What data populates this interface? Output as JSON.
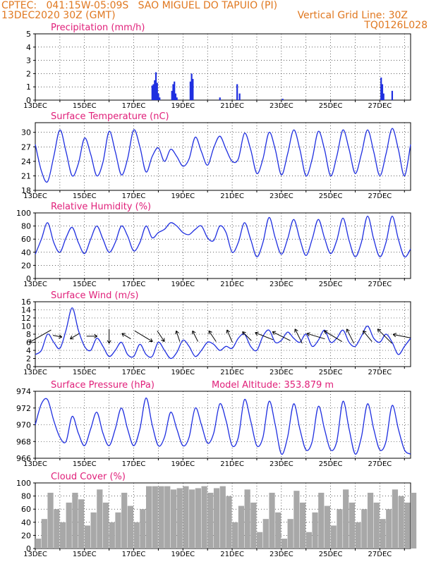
{
  "header": {
    "line1": "CPTEC:   041:15W-05:09S   SAO MIGUEL DO TAPUIO (PI)",
    "line2_left": "13DEC2020 30Z (GMT)",
    "line2_right": "Vertical Grid Line: 30Z",
    "line3_right": "TQ0126L028"
  },
  "colors": {
    "header": "#e07820",
    "title": "#e0207a",
    "series": "#1f2fe0",
    "cloud": "#a8a8a8"
  },
  "chart_data": [
    {
      "type": "bar",
      "title": "Precipitation (mm/h)",
      "ylim": [
        0,
        5
      ],
      "yticks": [
        0,
        1,
        2,
        3,
        4,
        5
      ],
      "xticks": [
        "13DEC",
        "15DEC",
        "17DEC",
        "19DEC",
        "21DEC",
        "23DEC",
        "25DEC",
        "27DEC"
      ],
      "xlim": [
        0,
        15.25
      ],
      "x": [
        4.75,
        4.8,
        4.85,
        4.9,
        4.95,
        5.0,
        5.05,
        5.55,
        5.6,
        5.65,
        5.7,
        5.75,
        6.3,
        6.35,
        6.4,
        7.5,
        8.2,
        8.3,
        10.05,
        14.05,
        14.1,
        14.15,
        14.5
      ],
      "values": [
        1.1,
        1.2,
        1.5,
        2.1,
        1.3,
        0.5,
        0.2,
        0.7,
        1.2,
        1.4,
        0.5,
        0.2,
        1.4,
        2.0,
        1.6,
        0.2,
        1.2,
        0.5,
        0.1,
        1.7,
        1.2,
        0.5,
        0.7
      ]
    },
    {
      "type": "line",
      "title": "Surface Temperature (nC)",
      "ylim": [
        18,
        32
      ],
      "yticks": [
        18,
        21,
        24,
        27,
        30
      ],
      "xticks": [
        "13DEC",
        "15DEC",
        "17DEC",
        "19DEC",
        "21DEC",
        "23DEC",
        "25DEC",
        "27DEC"
      ],
      "xlim": [
        0,
        15.25
      ],
      "x": [
        0.0,
        0.25,
        0.5,
        0.75,
        1.0,
        1.25,
        1.5,
        1.75,
        2.0,
        2.25,
        2.5,
        2.75,
        3.0,
        3.25,
        3.5,
        3.75,
        4.0,
        4.25,
        4.5,
        4.75,
        5.0,
        5.25,
        5.5,
        5.75,
        6.0,
        6.25,
        6.5,
        6.75,
        7.0,
        7.25,
        7.5,
        7.75,
        8.0,
        8.25,
        8.5,
        8.75,
        9.0,
        9.25,
        9.5,
        9.75,
        10.0,
        10.25,
        10.5,
        10.75,
        11.0,
        11.25,
        11.5,
        11.75,
        12.0,
        12.25,
        12.5,
        12.75,
        13.0,
        13.25,
        13.5,
        13.75,
        14.0,
        14.25,
        14.5,
        14.75,
        15.0,
        15.25
      ],
      "values": [
        27.5,
        22.0,
        19.8,
        25.0,
        30.5,
        26.0,
        21.0,
        23.5,
        28.8,
        25.5,
        21.0,
        23.8,
        30.2,
        26.0,
        21.2,
        24.5,
        30.5,
        27.0,
        21.8,
        25.0,
        26.8,
        24.0,
        26.5,
        25.0,
        23.0,
        24.5,
        29.0,
        26.0,
        23.2,
        26.8,
        29.2,
        26.5,
        24.0,
        24.5,
        29.8,
        26.5,
        21.5,
        24.5,
        30.0,
        26.5,
        21.2,
        25.5,
        30.5,
        26.5,
        21.0,
        24.5,
        30.2,
        26.5,
        21.0,
        25.0,
        30.5,
        26.5,
        21.5,
        25.5,
        30.5,
        26.0,
        21.0,
        25.5,
        30.8,
        26.5,
        21.0,
        27.5
      ]
    },
    {
      "type": "line",
      "title": "Relative Humidity (%)",
      "ylim": [
        0,
        100
      ],
      "yticks": [
        0,
        20,
        40,
        60,
        80,
        100
      ],
      "xticks": [
        "13DEC",
        "15DEC",
        "17DEC",
        "19DEC",
        "21DEC",
        "23DEC",
        "25DEC",
        "27DEC"
      ],
      "xlim": [
        0,
        15.25
      ],
      "x": [
        0.0,
        0.25,
        0.5,
        0.75,
        1.0,
        1.25,
        1.5,
        1.75,
        2.0,
        2.25,
        2.5,
        2.75,
        3.0,
        3.25,
        3.5,
        3.75,
        4.0,
        4.25,
        4.5,
        4.75,
        5.0,
        5.25,
        5.5,
        5.75,
        6.0,
        6.25,
        6.5,
        6.75,
        7.0,
        7.25,
        7.5,
        7.75,
        8.0,
        8.25,
        8.5,
        8.75,
        9.0,
        9.25,
        9.5,
        9.75,
        10.0,
        10.25,
        10.5,
        10.75,
        11.0,
        11.25,
        11.5,
        11.75,
        12.0,
        12.25,
        12.5,
        12.75,
        13.0,
        13.25,
        13.5,
        13.75,
        14.0,
        14.25,
        14.5,
        14.75,
        15.0,
        15.25
      ],
      "values": [
        37,
        60,
        85,
        55,
        40,
        62,
        78,
        55,
        38,
        60,
        80,
        60,
        40,
        55,
        80,
        65,
        42,
        55,
        80,
        62,
        70,
        75,
        85,
        80,
        70,
        67,
        75,
        80,
        62,
        58,
        80,
        70,
        40,
        55,
        85,
        60,
        33,
        55,
        93,
        62,
        37,
        60,
        90,
        60,
        35,
        60,
        90,
        62,
        38,
        58,
        92,
        58,
        33,
        55,
        95,
        60,
        33,
        55,
        95,
        60,
        33,
        45
      ]
    },
    {
      "type": "line",
      "title": "Surface Wind (m/s)",
      "ylim": [
        0,
        16
      ],
      "yticks": [
        0,
        2,
        4,
        6,
        8,
        10,
        12,
        14,
        16
      ],
      "xticks": [
        "13DEC",
        "15DEC",
        "17DEC",
        "19DEC",
        "21DEC",
        "23DEC",
        "25DEC",
        "27DEC"
      ],
      "xlim": [
        0,
        15.25
      ],
      "x": [
        0.0,
        0.25,
        0.5,
        0.75,
        1.0,
        1.25,
        1.5,
        1.75,
        2.0,
        2.25,
        2.5,
        2.75,
        3.0,
        3.25,
        3.5,
        3.75,
        4.0,
        4.25,
        4.5,
        4.75,
        5.0,
        5.25,
        5.5,
        5.75,
        6.0,
        6.25,
        6.5,
        6.75,
        7.0,
        7.25,
        7.5,
        7.75,
        8.0,
        8.25,
        8.5,
        8.75,
        9.0,
        9.25,
        9.5,
        9.75,
        10.0,
        10.25,
        10.5,
        10.75,
        11.0,
        11.25,
        11.5,
        11.75,
        12.0,
        12.25,
        12.5,
        12.75,
        13.0,
        13.25,
        13.5,
        13.75,
        14.0,
        14.25,
        14.5,
        14.75,
        15.0,
        15.25
      ],
      "values": [
        3,
        4,
        8,
        6,
        4.5,
        9,
        14.5,
        9,
        5,
        4,
        7,
        5,
        2.5,
        4,
        6,
        3,
        2.5,
        5.5,
        3,
        2.5,
        6,
        4,
        2,
        3.5,
        6.5,
        5,
        2.5,
        4,
        6,
        5.5,
        4,
        5,
        4.5,
        7,
        8,
        5,
        4,
        7.5,
        9,
        6,
        6.5,
        8.5,
        7,
        6,
        8,
        5,
        6.5,
        9,
        6,
        7,
        9,
        6,
        5,
        7.5,
        10,
        7,
        6,
        8,
        6,
        3,
        5,
        7
      ],
      "vectors": [
        {
          "x": 0.2,
          "u": 1.4,
          "v": -0.8
        },
        {
          "x": 0.9,
          "u": -0.5,
          "v": -0.1
        },
        {
          "x": 1.6,
          "u": 0.5,
          "v": -0.3
        },
        {
          "x": 2.3,
          "u": -0.6,
          "v": 0.0
        },
        {
          "x": 3.0,
          "u": 0.0,
          "v": -0.8
        },
        {
          "x": 3.7,
          "u": 0.5,
          "v": 0.3
        },
        {
          "x": 4.4,
          "u": -1.0,
          "v": -0.6
        },
        {
          "x": 5.1,
          "u": -0.4,
          "v": -0.6
        },
        {
          "x": 5.8,
          "u": 0.2,
          "v": 0.6
        },
        {
          "x": 6.5,
          "u": 0.3,
          "v": 0.6
        },
        {
          "x": 7.2,
          "u": 0.4,
          "v": 0.6
        },
        {
          "x": 7.9,
          "u": 0.3,
          "v": 0.7
        },
        {
          "x": 8.6,
          "u": 0.5,
          "v": 0.5
        },
        {
          "x": 9.3,
          "u": 1.0,
          "v": 0.4
        },
        {
          "x": 10.0,
          "u": 1.0,
          "v": 0.5
        },
        {
          "x": 10.7,
          "u": 0.4,
          "v": 0.8
        },
        {
          "x": 11.4,
          "u": 1.0,
          "v": 0.3
        },
        {
          "x": 12.1,
          "u": 1.0,
          "v": 0.6
        },
        {
          "x": 12.8,
          "u": 0.4,
          "v": 0.8
        },
        {
          "x": 13.5,
          "u": 0.5,
          "v": 0.6
        },
        {
          "x": 14.2,
          "u": 0.8,
          "v": 0.8
        },
        {
          "x": 14.9,
          "u": 1.0,
          "v": 0.2
        }
      ]
    },
    {
      "type": "line",
      "title": "Surface Pressure (hPa)",
      "annotation": "Model Altitude: 353.879 m",
      "ylim": [
        966,
        974
      ],
      "yticks": [
        966,
        968,
        970,
        972,
        974
      ],
      "xticks": [
        "13DEC",
        "15DEC",
        "17DEC",
        "19DEC",
        "21DEC",
        "23DEC",
        "25DEC",
        "27DEC"
      ],
      "xlim": [
        0,
        15.25
      ],
      "x": [
        0.0,
        0.25,
        0.5,
        0.75,
        1.0,
        1.25,
        1.5,
        1.75,
        2.0,
        2.25,
        2.5,
        2.75,
        3.0,
        3.25,
        3.5,
        3.75,
        4.0,
        4.25,
        4.5,
        4.75,
        5.0,
        5.25,
        5.5,
        5.75,
        6.0,
        6.25,
        6.5,
        6.75,
        7.0,
        7.25,
        7.5,
        7.75,
        8.0,
        8.25,
        8.5,
        8.75,
        9.0,
        9.25,
        9.5,
        9.75,
        10.0,
        10.25,
        10.5,
        10.75,
        11.0,
        11.25,
        11.5,
        11.75,
        12.0,
        12.25,
        12.5,
        12.75,
        13.0,
        13.25,
        13.5,
        13.75,
        14.0,
        14.25,
        14.5,
        14.75,
        15.0,
        15.25
      ],
      "values": [
        970,
        972.5,
        973,
        970.5,
        968.5,
        968,
        971,
        969,
        967.5,
        969.5,
        971.5,
        969,
        967.5,
        969.5,
        972,
        969.5,
        967.5,
        969.5,
        973.2,
        970,
        967.5,
        968.5,
        971.5,
        969.5,
        967.5,
        968.5,
        972,
        970,
        967.8,
        969,
        972.5,
        970.5,
        967.5,
        968.5,
        973,
        970.5,
        967.5,
        968.5,
        972.8,
        970,
        966.5,
        968.5,
        972.5,
        969.5,
        967,
        968,
        972.2,
        969.5,
        967,
        968,
        972.8,
        969.5,
        966.5,
        968.5,
        972.5,
        969.5,
        967,
        968,
        972.3,
        969.5,
        967,
        966.5
      ]
    },
    {
      "type": "bar",
      "title": "Cloud Cover (%)",
      "ylim": [
        0,
        100
      ],
      "yticks": [
        0,
        20,
        40,
        60,
        80,
        100
      ],
      "xticks": [
        "13DEC",
        "15DEC",
        "17DEC",
        "19DEC",
        "21DEC",
        "23DEC",
        "25DEC",
        "27DEC"
      ],
      "xlim": [
        0,
        15.25
      ],
      "x": [
        0.0,
        0.25,
        0.5,
        0.75,
        1.0,
        1.25,
        1.5,
        1.75,
        2.0,
        2.25,
        2.5,
        2.75,
        3.0,
        3.25,
        3.5,
        3.75,
        4.0,
        4.25,
        4.5,
        4.75,
        5.0,
        5.25,
        5.5,
        5.75,
        6.0,
        6.25,
        6.5,
        6.75,
        7.0,
        7.25,
        7.5,
        7.75,
        8.0,
        8.25,
        8.5,
        8.75,
        9.0,
        9.25,
        9.5,
        9.75,
        10.0,
        10.25,
        10.5,
        10.75,
        11.0,
        11.25,
        11.5,
        11.75,
        12.0,
        12.25,
        12.5,
        12.75,
        13.0,
        13.25,
        13.5,
        13.75,
        14.0,
        14.25,
        14.5,
        14.75,
        15.0,
        15.25
      ],
      "values": [
        15,
        45,
        85,
        60,
        40,
        70,
        85,
        75,
        35,
        55,
        90,
        70,
        40,
        55,
        85,
        65,
        40,
        60,
        95,
        95,
        95,
        95,
        90,
        92,
        95,
        90,
        92,
        95,
        85,
        92,
        95,
        80,
        40,
        65,
        90,
        70,
        25,
        45,
        85,
        55,
        15,
        45,
        88,
        70,
        25,
        55,
        85,
        65,
        35,
        60,
        90,
        70,
        40,
        60,
        85,
        70,
        45,
        60,
        90,
        80,
        70,
        85
      ]
    }
  ]
}
